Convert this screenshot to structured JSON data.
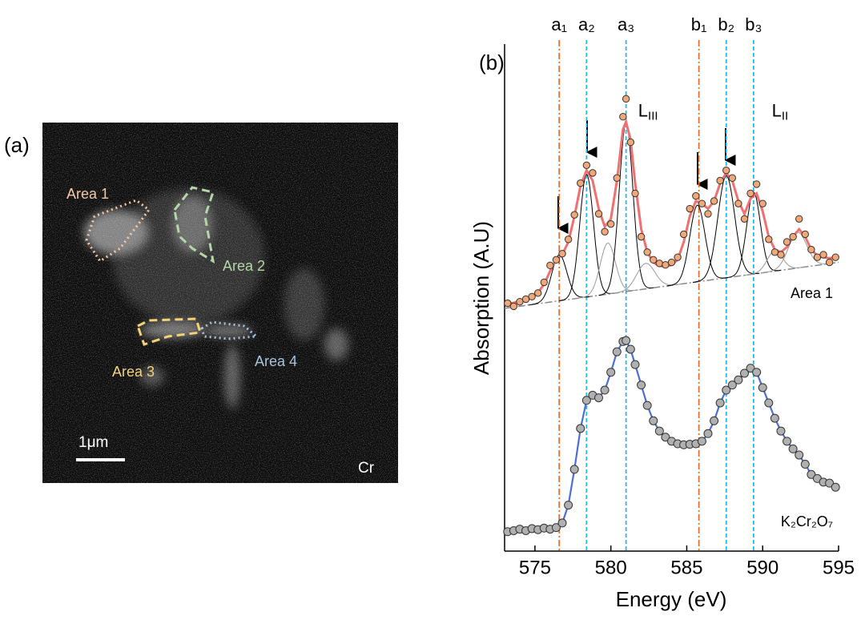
{
  "panel_a": {
    "label": "(a)",
    "areas": [
      {
        "name": "Area 1",
        "color": "#f2c9a8"
      },
      {
        "name": "Area 2",
        "color": "#b5d6a8"
      },
      {
        "name": "Area 3",
        "color": "#f4d27a"
      },
      {
        "name": "Area 4",
        "color": "#a8c4e0"
      }
    ],
    "scale_bar": "1μm",
    "element": "Cr"
  },
  "chart_data": {
    "type": "scatter",
    "panel_label": "(b)",
    "x_label": "Energy (eV)",
    "y_label": "Absorption (A.U)",
    "xlim": [
      573,
      595
    ],
    "xticks": [
      575,
      580,
      585,
      590,
      595
    ],
    "ylim": [
      0,
      100
    ],
    "reference_lines": [
      {
        "x": 576.6,
        "label": "a₁",
        "color": "#e07030",
        "style": "dashdot"
      },
      {
        "x": 578.4,
        "label": "a₂",
        "color": "#29b6e8",
        "style": "dashed"
      },
      {
        "x": 581.0,
        "label": "a₃",
        "color": "#29b6e8",
        "style": "dashed"
      },
      {
        "x": 585.8,
        "label": "b₁",
        "color": "#e07030",
        "style": "dashdot"
      },
      {
        "x": 587.6,
        "label": "b₂",
        "color": "#29b6e8",
        "style": "dashed"
      },
      {
        "x": 589.4,
        "label": "b₃",
        "color": "#29b6e8",
        "style": "dashed"
      }
    ],
    "edge_labels": [
      {
        "text": "L",
        "sub": "III",
        "x": 581.8,
        "y": 86
      },
      {
        "text": "L",
        "sub": "II",
        "x": 590.6,
        "y": 86
      }
    ],
    "series": [
      {
        "name": "Area 1",
        "color": "#f0a878",
        "x": [
          573.2,
          573.6,
          574.0,
          574.4,
          574.8,
          575.2,
          575.6,
          576.0,
          576.4,
          576.8,
          577.2,
          577.6,
          578.0,
          578.4,
          578.8,
          579.2,
          579.6,
          580.0,
          580.4,
          580.8,
          581.0,
          581.3,
          581.6,
          582.0,
          582.4,
          582.8,
          583.2,
          583.6,
          584.0,
          584.4,
          584.8,
          585.2,
          585.6,
          586.0,
          586.4,
          586.8,
          587.2,
          587.6,
          588.0,
          588.4,
          588.8,
          589.2,
          589.6,
          590.0,
          590.4,
          590.8,
          591.2,
          591.6,
          592.0,
          592.4,
          592.8,
          593.2,
          593.6,
          594.0,
          594.4,
          594.8
        ],
        "values": [
          48.5,
          47.9,
          48.8,
          49.3,
          49.8,
          50.5,
          52.6,
          55.9,
          57.0,
          58.2,
          61.0,
          65.8,
          72.0,
          75.5,
          74.0,
          66.0,
          62.5,
          64.0,
          73.0,
          85.0,
          88.5,
          80.0,
          70.0,
          61.5,
          58.5,
          57.0,
          56.3,
          56.0,
          56.5,
          57.5,
          62.0,
          67.0,
          69.5,
          68.0,
          66.0,
          68.5,
          72.5,
          74.5,
          73.0,
          68.0,
          65.0,
          70.0,
          71.8,
          68.0,
          61.0,
          58.5,
          58.0,
          60.5,
          61.5,
          65.0,
          62.0,
          59.0,
          57.5,
          58.0,
          56.5,
          57.5
        ],
        "fit": {
          "color": "#f07070",
          "values": [
            48.3,
            48.6,
            48.9,
            49.3,
            49.8,
            50.6,
            52.2,
            54.8,
            57.0,
            58.0,
            60.5,
            65.5,
            71.5,
            74.5,
            72.5,
            67.0,
            63.5,
            65.0,
            72.5,
            82.5,
            84.0,
            80.5,
            72.0,
            63.0,
            58.5,
            56.5,
            55.8,
            55.7,
            56.0,
            57.0,
            60.5,
            65.5,
            68.5,
            68.0,
            67.0,
            68.5,
            72.0,
            74.0,
            72.5,
            68.5,
            66.0,
            69.0,
            70.0,
            66.5,
            61.5,
            59.0,
            58.5,
            59.5,
            61.5,
            63.0,
            61.5,
            59.0,
            57.8,
            57.5,
            57.3,
            57.5
          ]
        },
        "components": [
          {
            "center": 576.6,
            "height": 9,
            "width": 0.5,
            "color": "#000000"
          },
          {
            "center": 578.4,
            "height": 24,
            "width": 0.45,
            "color": "#000000"
          },
          {
            "center": 579.8,
            "height": 10,
            "width": 0.5,
            "color": "#999999"
          },
          {
            "center": 581.0,
            "height": 33,
            "width": 0.45,
            "color": "#000000"
          },
          {
            "center": 582.3,
            "height": 5,
            "width": 0.6,
            "color": "#999999"
          },
          {
            "center": 585.7,
            "height": 15,
            "width": 0.5,
            "color": "#000000"
          },
          {
            "center": 587.6,
            "height": 20,
            "width": 0.55,
            "color": "#000000"
          },
          {
            "center": 589.4,
            "height": 16,
            "width": 0.45,
            "color": "#000000"
          },
          {
            "center": 590.8,
            "height": 4,
            "width": 0.5,
            "color": "#999999"
          },
          {
            "center": 592.3,
            "height": 7,
            "width": 0.6,
            "color": "#999999"
          }
        ],
        "background": {
          "x": [
            573,
            595
          ],
          "values": [
            47.5,
            56.5
          ],
          "color": "#888888"
        }
      },
      {
        "name": "K₂Cr₂O₇",
        "color": "#b0b0b0",
        "line_color": "#4a6fd8",
        "x": [
          573.2,
          573.6,
          574.0,
          574.4,
          574.8,
          575.2,
          575.6,
          576.0,
          576.4,
          576.8,
          577.2,
          577.6,
          578.0,
          578.4,
          578.8,
          579.2,
          579.6,
          580.0,
          580.4,
          580.8,
          581.0,
          581.3,
          581.6,
          582.0,
          582.4,
          582.8,
          583.2,
          583.6,
          584.0,
          584.4,
          584.8,
          585.2,
          585.6,
          586.0,
          586.4,
          586.8,
          587.2,
          587.6,
          588.0,
          588.4,
          588.8,
          589.2,
          589.6,
          590.0,
          590.4,
          590.8,
          591.2,
          591.6,
          592.0,
          592.4,
          592.8,
          593.2,
          593.6,
          594.0,
          594.4,
          594.8
        ],
        "values": [
          3.8,
          4.0,
          4.3,
          4.0,
          4.4,
          4.2,
          4.5,
          4.3,
          4.6,
          5.5,
          9.0,
          16.0,
          24.0,
          29.5,
          30.5,
          30.0,
          31.5,
          35.0,
          39.0,
          41.0,
          41.2,
          39.5,
          36.5,
          32.5,
          28.5,
          25.5,
          23.5,
          22.3,
          21.5,
          21.0,
          20.8,
          20.9,
          21.0,
          21.5,
          23.0,
          25.5,
          29.0,
          31.5,
          32.5,
          33.5,
          34.8,
          35.8,
          35.0,
          32.0,
          29.0,
          26.0,
          23.5,
          21.5,
          20.0,
          18.8,
          17.0,
          15.0,
          14.2,
          13.5,
          13.3,
          12.5
        ]
      }
    ]
  }
}
